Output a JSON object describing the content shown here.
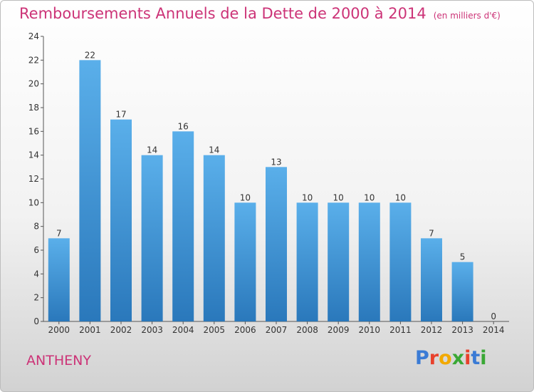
{
  "title": "Remboursements Annuels de la Dette de 2000 à 2014",
  "subtitle": "(en milliers d'€)",
  "commune": "ANTHENY",
  "logo": {
    "letters": [
      "P",
      "r",
      "o",
      "x",
      "i",
      "t",
      "i"
    ],
    "colors": [
      "#3a7bd5",
      "#e8412c",
      "#f2a900",
      "#3aa835",
      "#e8412c",
      "#3a7bd5",
      "#3aa835"
    ]
  },
  "colors": {
    "bar_top": "#5aafea",
    "bar_bottom": "#2a78bb",
    "title": "#cc3377"
  },
  "chart_data": {
    "type": "bar",
    "categories": [
      "2000",
      "2001",
      "2002",
      "2003",
      "2004",
      "2005",
      "2006",
      "2007",
      "2008",
      "2009",
      "2010",
      "2011",
      "2012",
      "2013",
      "2014"
    ],
    "values": [
      7,
      22,
      17,
      14,
      16,
      14,
      10,
      13,
      10,
      10,
      10,
      10,
      7,
      5,
      0
    ],
    "title": "Remboursements Annuels de la Dette de 2000 à 2014",
    "ylim": [
      0,
      24
    ],
    "yticks": [
      0,
      2,
      4,
      6,
      8,
      10,
      12,
      14,
      16,
      18,
      20,
      22,
      24
    ],
    "grid": false,
    "legend": "none"
  }
}
